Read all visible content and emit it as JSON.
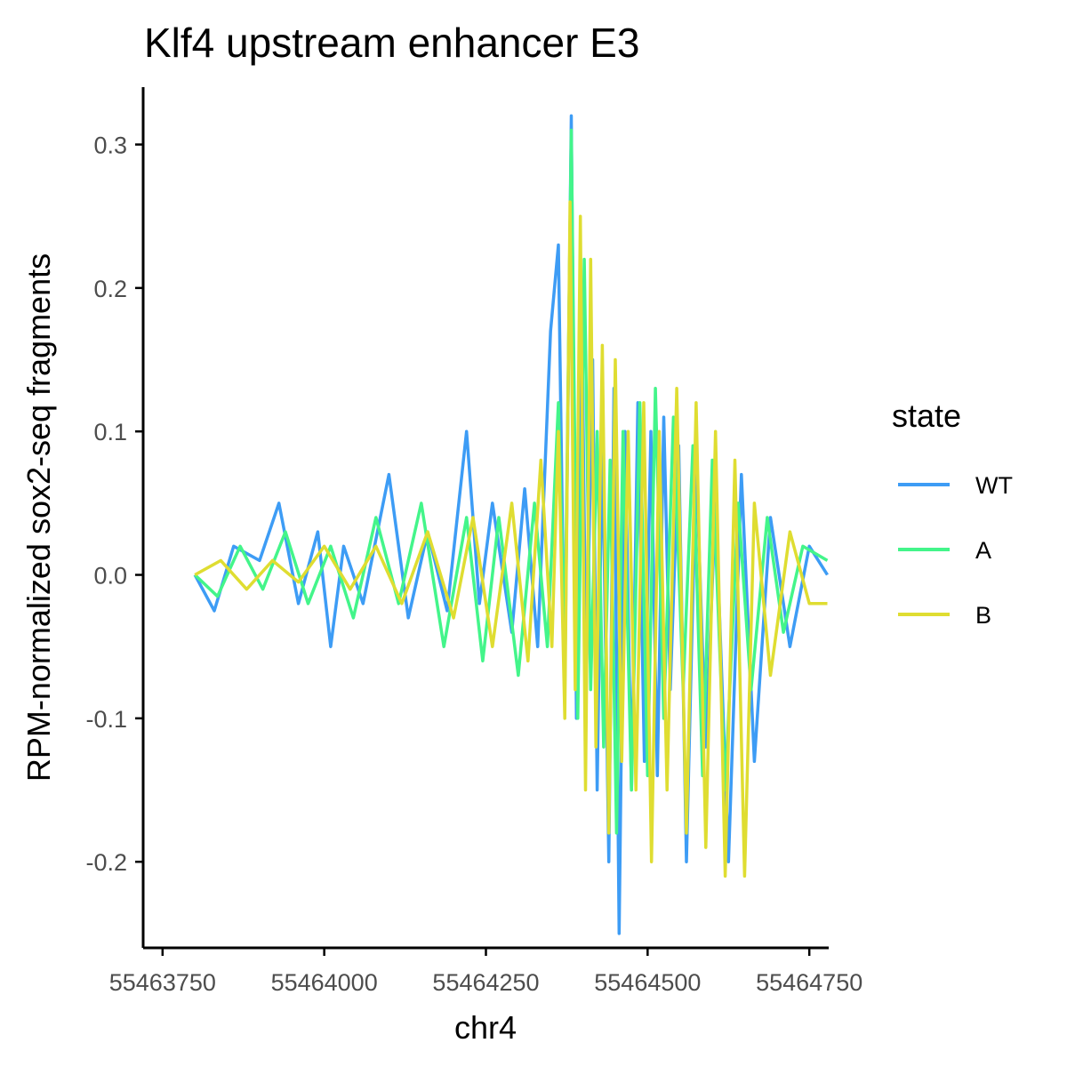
{
  "chart_data": {
    "type": "line",
    "title": "Klf4 upstream enhancer E3",
    "xlabel": "chr4",
    "ylabel": "RPM-normalized sox2-seq fragments",
    "xlim": [
      55463720,
      55464780
    ],
    "ylim": [
      -0.26,
      0.34
    ],
    "x_ticks": [
      55463750,
      55464000,
      55464250,
      55464500,
      55464750
    ],
    "x_tick_labels": [
      "55463750",
      "55464000",
      "55464250",
      "55464500",
      "55464750"
    ],
    "y_ticks": [
      -0.2,
      -0.1,
      0.0,
      0.1,
      0.2,
      0.3
    ],
    "y_tick_labels": [
      "-0.2",
      "-0.1",
      "0.0",
      "0.1",
      "0.2",
      "0.3"
    ],
    "grid": false,
    "legend": {
      "title": "state",
      "placement": "right"
    },
    "series": [
      {
        "name": "WT",
        "color": "#3d9cf5",
        "x": [
          55463800,
          55463830,
          55463860,
          55463900,
          55463930,
          55463960,
          55463990,
          55464010,
          55464030,
          55464060,
          55464100,
          55464130,
          55464160,
          55464190,
          55464220,
          55464240,
          55464260,
          55464290,
          55464310,
          55464330,
          55464350,
          55464362,
          55464372,
          55464382,
          55464390,
          55464398,
          55464405,
          55464415,
          55464422,
          55464430,
          55464440,
          55464448,
          55464456,
          55464465,
          55464475,
          55464485,
          55464495,
          55464505,
          55464515,
          55464525,
          55464535,
          55464548,
          55464560,
          55464575,
          55464590,
          55464605,
          55464625,
          55464645,
          55464665,
          55464690,
          55464720,
          55464750,
          55464778
        ],
        "values": [
          0.0,
          -0.025,
          0.02,
          0.01,
          0.05,
          -0.02,
          0.03,
          -0.05,
          0.02,
          -0.02,
          0.07,
          -0.03,
          0.03,
          -0.025,
          0.1,
          -0.02,
          0.05,
          -0.04,
          0.06,
          -0.05,
          0.17,
          0.23,
          -0.08,
          0.32,
          -0.1,
          0.2,
          -0.08,
          0.15,
          -0.15,
          0.1,
          -0.2,
          0.13,
          -0.25,
          0.1,
          -0.15,
          0.12,
          -0.13,
          0.1,
          -0.14,
          0.11,
          -0.08,
          0.09,
          -0.2,
          0.08,
          -0.12,
          0.05,
          -0.2,
          0.07,
          -0.13,
          0.04,
          -0.05,
          0.02,
          0.0
        ]
      },
      {
        "name": "A",
        "color": "#43f58a",
        "x": [
          55463800,
          55463835,
          55463870,
          55463905,
          55463940,
          55463975,
          55464010,
          55464045,
          55464080,
          55464115,
          55464150,
          55464185,
          55464220,
          55464245,
          55464270,
          55464300,
          55464325,
          55464345,
          55464362,
          55464372,
          55464382,
          55464392,
          55464402,
          55464412,
          55464422,
          55464432,
          55464442,
          55464452,
          55464462,
          55464475,
          55464488,
          55464500,
          55464512,
          55464525,
          55464540,
          55464555,
          55464570,
          55464585,
          55464600,
          55464620,
          55464640,
          55464660,
          55464685,
          55464710,
          55464740,
          55464778
        ],
        "values": [
          0.0,
          -0.015,
          0.02,
          -0.01,
          0.03,
          -0.02,
          0.02,
          -0.03,
          0.04,
          -0.02,
          0.05,
          -0.05,
          0.04,
          -0.06,
          0.04,
          -0.07,
          0.05,
          -0.05,
          0.12,
          -0.05,
          0.31,
          -0.1,
          0.22,
          -0.08,
          0.1,
          -0.12,
          0.08,
          -0.18,
          0.1,
          -0.15,
          0.12,
          -0.14,
          0.13,
          -0.1,
          0.11,
          -0.08,
          0.09,
          -0.14,
          0.08,
          -0.15,
          0.05,
          -0.08,
          0.04,
          -0.04,
          0.02,
          0.01
        ]
      },
      {
        "name": "B",
        "color": "#dfdd31",
        "x": [
          55463800,
          55463840,
          55463880,
          55463920,
          55463960,
          55464000,
          55464040,
          55464080,
          55464120,
          55464160,
          55464200,
          55464230,
          55464260,
          55464290,
          55464315,
          55464335,
          55464352,
          55464362,
          55464372,
          55464380,
          55464388,
          55464396,
          55464404,
          55464412,
          55464420,
          55464430,
          55464440,
          55464450,
          55464460,
          55464470,
          55464482,
          55464494,
          55464506,
          55464518,
          55464530,
          55464545,
          55464560,
          55464575,
          55464590,
          55464605,
          55464620,
          55464635,
          55464650,
          55464665,
          55464690,
          55464720,
          55464750,
          55464778
        ],
        "values": [
          0.0,
          0.01,
          -0.01,
          0.01,
          -0.005,
          0.02,
          -0.01,
          0.02,
          -0.02,
          0.03,
          -0.03,
          0.04,
          -0.05,
          0.05,
          -0.06,
          0.08,
          -0.05,
          0.1,
          -0.1,
          0.26,
          -0.08,
          0.25,
          -0.15,
          0.22,
          -0.12,
          0.16,
          -0.18,
          0.15,
          -0.13,
          0.1,
          -0.15,
          0.12,
          -0.2,
          0.1,
          -0.15,
          0.13,
          -0.18,
          0.12,
          -0.19,
          0.1,
          -0.21,
          0.08,
          -0.21,
          0.05,
          -0.07,
          0.03,
          -0.02,
          -0.02
        ]
      }
    ]
  }
}
